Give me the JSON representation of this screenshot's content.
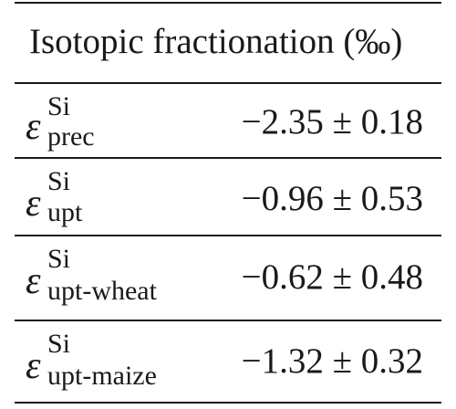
{
  "table": {
    "header": "Isotopic fractionation (‰)",
    "rows": [
      {
        "symbol": "ε",
        "superscript": "Si",
        "subscript": "prec",
        "value": "−2.35 ± 0.18"
      },
      {
        "symbol": "ε",
        "superscript": "Si",
        "subscript": "upt",
        "value": "−0.96 ± 0.53"
      },
      {
        "symbol": "ε",
        "superscript": "Si",
        "subscript": "upt-wheat",
        "value": "−0.62 ± 0.48"
      },
      {
        "symbol": "ε",
        "superscript": "Si",
        "subscript": "upt-maize",
        "value": "−1.32 ± 0.32"
      }
    ]
  }
}
